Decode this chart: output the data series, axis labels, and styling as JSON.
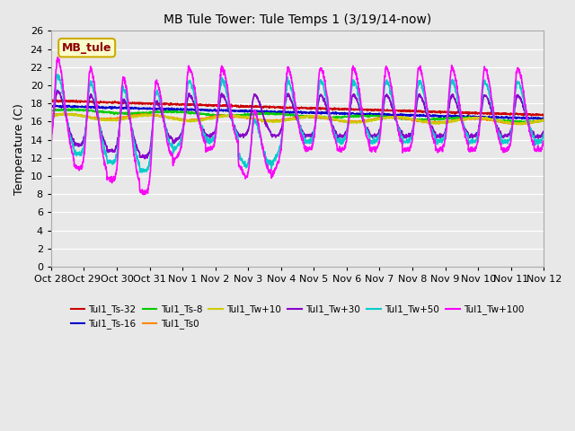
{
  "title": "MB Tule Tower: Tule Temps 1 (3/19/14-now)",
  "ylabel": "Temperature (C)",
  "xlim": [
    0,
    15
  ],
  "ylim": [
    0,
    26
  ],
  "yticks": [
    0,
    2,
    4,
    6,
    8,
    10,
    12,
    14,
    16,
    18,
    20,
    22,
    24,
    26
  ],
  "xtick_labels": [
    "Oct 28",
    "Oct 29",
    "Oct 30",
    "Oct 31",
    "Nov 1",
    "Nov 2",
    "Nov 3",
    "Nov 4",
    "Nov 5",
    "Nov 6",
    "Nov 7",
    "Nov 8",
    "Nov 9",
    "Nov 10",
    "Nov 11",
    "Nov 12"
  ],
  "xtick_positions": [
    0,
    1,
    2,
    3,
    4,
    5,
    6,
    7,
    8,
    9,
    10,
    11,
    12,
    13,
    14,
    15
  ],
  "legend_box_text": "MB_tule",
  "bg_color": "#e8e8e8",
  "series_colors": {
    "Tul1_Ts-32": "#cc0000",
    "Tul1_Ts-16": "#0000cc",
    "Tul1_Ts-8": "#00cc00",
    "Tul1_Ts0": "#ff8800",
    "Tul1_Tw+10": "#cccc00",
    "Tul1_Tw+30": "#8800cc",
    "Tul1_Tw+50": "#00cccc",
    "Tul1_Tw+100": "#ff00ff"
  }
}
